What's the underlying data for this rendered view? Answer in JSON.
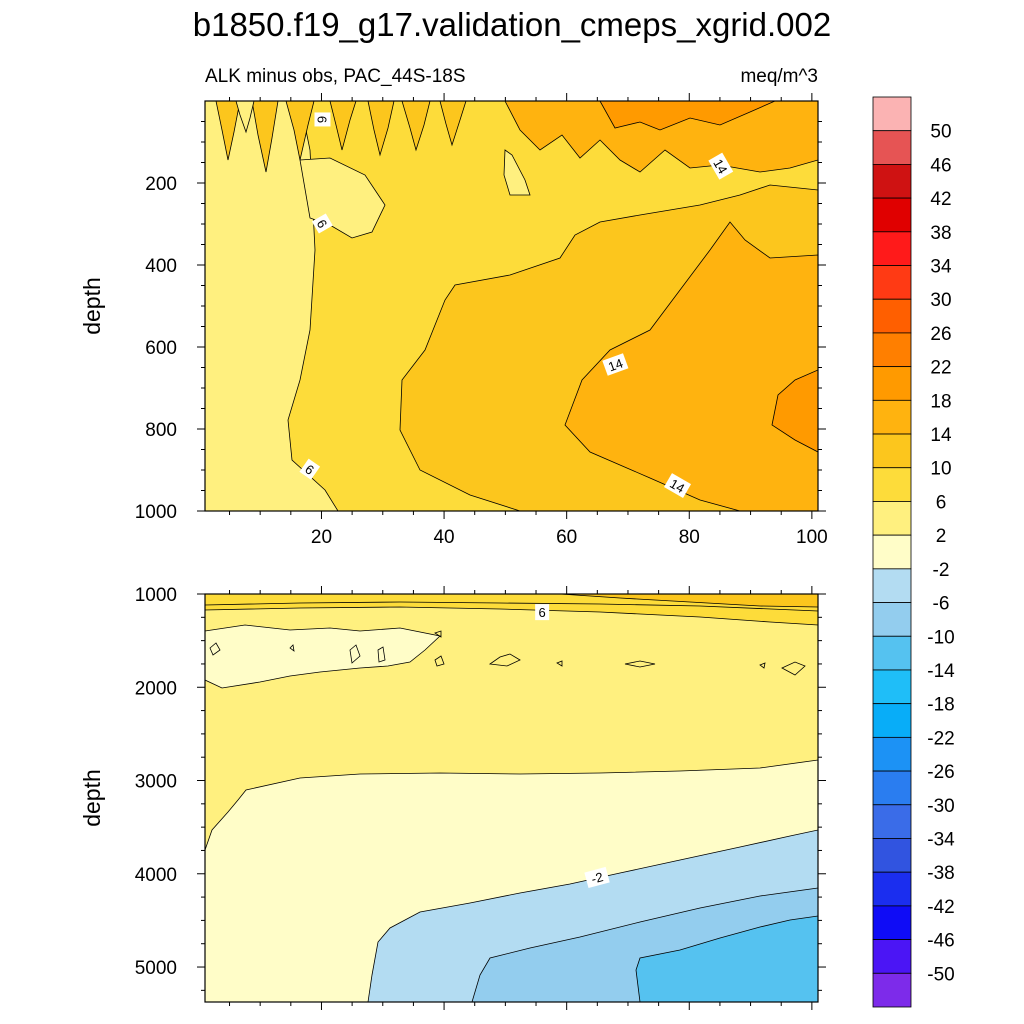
{
  "chart_data": {
    "type": "contour",
    "title": "b1850.f19_g17.validation_cmeps_xgrid.002",
    "left_label": "ALK minus obs, PAC_44S-18S",
    "right_label": "meq/m^3",
    "ylabel": "depth",
    "x_ticks": [
      "20",
      "40",
      "60",
      "80",
      "100"
    ],
    "xlim": [
      1,
      101
    ],
    "upper_panel": {
      "ylim": [
        0,
        1000
      ],
      "y_ticks": [
        "200",
        "400",
        "600",
        "800",
        "1000"
      ],
      "contour_labels": [
        "6",
        "6",
        "6",
        "14",
        "14",
        "14"
      ]
    },
    "lower_panel": {
      "ylim": [
        1000,
        5375
      ],
      "y_ticks": [
        "1000",
        "2000",
        "3000",
        "4000",
        "5000"
      ],
      "contour_labels": [
        "6",
        "-2"
      ]
    },
    "colorbar": {
      "levels": [
        "50",
        "46",
        "42",
        "38",
        "34",
        "30",
        "26",
        "22",
        "18",
        "14",
        "10",
        "6",
        "2",
        "-2",
        "-6",
        "-10",
        "-14",
        "-18",
        "-22",
        "-26",
        "-30",
        "-34",
        "-38",
        "-42",
        "-46",
        "-50"
      ],
      "colors": [
        "#fbb3b3",
        "#e65454",
        "#cf1212",
        "#e00000",
        "#ff1a1a",
        "#ff3a14",
        "#ff5f00",
        "#ff7f00",
        "#ff9a00",
        "#ffb30f",
        "#fcc61d",
        "#fddc3a",
        "#fff07f",
        "#fffdc8",
        "#b3dcf2",
        "#93cdee",
        "#55c2f0",
        "#1fbef8",
        "#08adf8",
        "#1c92f5",
        "#2a7df0",
        "#3a6ce8",
        "#3154e0",
        "#1b2eef",
        "#0f0cf6",
        "#4b15f5",
        "#7d2bea"
      ]
    }
  }
}
